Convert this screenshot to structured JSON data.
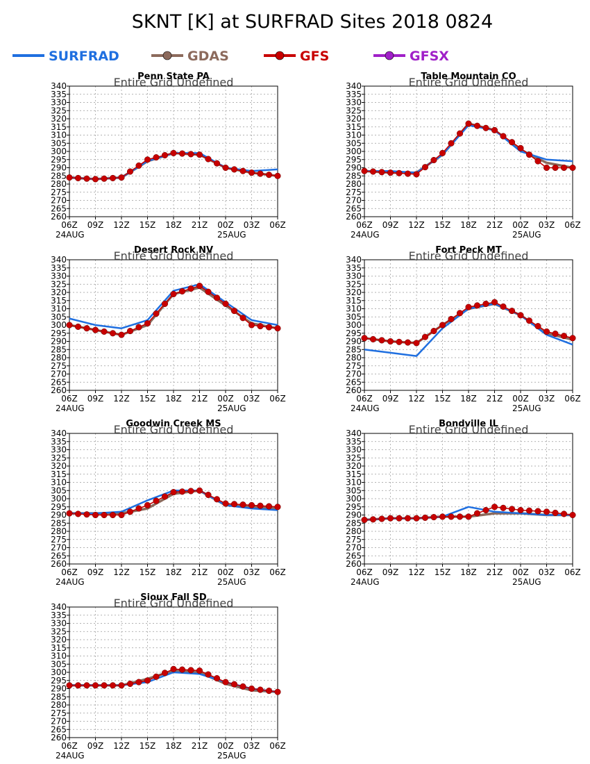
{
  "title": "SKNT [K] at SURFRAD Sites    2018 0824",
  "legend": [
    {
      "label": "SURFRAD",
      "color": "#1f6fe0",
      "marker": false
    },
    {
      "label": "GDAS",
      "color": "#8c6a5c",
      "marker": true
    },
    {
      "label": "GFS",
      "color": "#c80000",
      "marker": true
    },
    {
      "label": "GFSX",
      "color": "#a020c8",
      "marker": true
    }
  ],
  "chart_data": [
    {
      "type": "line",
      "title": "Penn State PA",
      "subtitle": "Entire Grid Undefined",
      "x": [
        "06Z",
        "09Z",
        "12Z",
        "15Z",
        "18Z",
        "21Z",
        "00Z",
        "03Z",
        "06Z"
      ],
      "date_labels": [
        "24AUG",
        "25AUG"
      ],
      "ylim": [
        260,
        340
      ],
      "yticks": [
        260,
        265,
        270,
        275,
        280,
        285,
        290,
        295,
        300,
        305,
        310,
        315,
        320,
        325,
        330,
        335,
        340
      ],
      "grid": true,
      "series": [
        {
          "name": "SURFRAD",
          "values": [
            284,
            283,
            284,
            294,
            299,
            299,
            290,
            288,
            289
          ]
        },
        {
          "name": "GDAS",
          "values": [
            284,
            283,
            284,
            294,
            299,
            298,
            290,
            287,
            285
          ]
        },
        {
          "name": "GFS",
          "values": [
            284,
            283,
            284,
            295,
            299,
            298,
            290,
            287,
            285
          ]
        }
      ]
    },
    {
      "type": "line",
      "title": "Table Mountain CO",
      "subtitle": "Entire Grid Undefined",
      "x": [
        "06Z",
        "09Z",
        "12Z",
        "15Z",
        "18Z",
        "21Z",
        "00Z",
        "03Z",
        "06Z"
      ],
      "date_labels": [
        "24AUG",
        "25AUG"
      ],
      "ylim": [
        260,
        340
      ],
      "yticks": [
        260,
        265,
        270,
        275,
        280,
        285,
        290,
        295,
        300,
        305,
        310,
        315,
        320,
        325,
        330,
        335,
        340
      ],
      "grid": true,
      "series": [
        {
          "name": "SURFRAD",
          "values": [
            288,
            288,
            287,
            298,
            316,
            313,
            300,
            295,
            294
          ]
        },
        {
          "name": "GDAS",
          "values": [
            288,
            287,
            287,
            298,
            317,
            313,
            301,
            293,
            290
          ]
        },
        {
          "name": "GFS",
          "values": [
            288,
            287,
            286,
            299,
            317,
            313,
            302,
            290,
            290
          ]
        }
      ]
    },
    {
      "type": "line",
      "title": "Desert Rock NV",
      "subtitle": "Entire Grid Undefined",
      "x": [
        "06Z",
        "09Z",
        "12Z",
        "15Z",
        "18Z",
        "21Z",
        "00Z",
        "03Z",
        "06Z"
      ],
      "date_labels": [
        "24AUG",
        "25AUG"
      ],
      "ylim": [
        260,
        340
      ],
      "yticks": [
        260,
        265,
        270,
        275,
        280,
        285,
        290,
        295,
        300,
        305,
        310,
        315,
        320,
        325,
        330,
        335,
        340
      ],
      "grid": true,
      "series": [
        {
          "name": "SURFRAD",
          "values": [
            304,
            300,
            298,
            303,
            321,
            325,
            314,
            303,
            300
          ]
        },
        {
          "name": "GDAS",
          "values": [
            300,
            297,
            294,
            300,
            319,
            323,
            312,
            301,
            298
          ]
        },
        {
          "name": "GFS",
          "values": [
            300,
            297,
            294,
            301,
            319,
            324,
            313,
            300,
            298
          ]
        }
      ]
    },
    {
      "type": "line",
      "title": "Fort Peck MT",
      "subtitle": "Entire Grid Undefined",
      "x": [
        "06Z",
        "09Z",
        "12Z",
        "15Z",
        "18Z",
        "21Z",
        "00Z",
        "03Z",
        "06Z"
      ],
      "date_labels": [
        "24AUG",
        "25AUG"
      ],
      "ylim": [
        260,
        340
      ],
      "yticks": [
        260,
        265,
        270,
        275,
        280,
        285,
        290,
        295,
        300,
        305,
        310,
        315,
        320,
        325,
        330,
        335,
        340
      ],
      "grid": true,
      "series": [
        {
          "name": "SURFRAD",
          "values": [
            285,
            283,
            281,
            298,
            310,
            313,
            306,
            294,
            288
          ]
        },
        {
          "name": "GDAS",
          "values": [
            292,
            290,
            289,
            300,
            310,
            313,
            306,
            295,
            291
          ]
        },
        {
          "name": "GFS",
          "values": [
            292,
            290,
            289,
            300,
            311,
            314,
            306,
            296,
            292
          ]
        }
      ]
    },
    {
      "type": "line",
      "title": "Goodwin Creek MS",
      "subtitle": "Entire Grid Undefined",
      "x": [
        "06Z",
        "09Z",
        "12Z",
        "15Z",
        "18Z",
        "21Z",
        "00Z",
        "03Z",
        "06Z"
      ],
      "date_labels": [
        "24AUG",
        "25AUG"
      ],
      "ylim": [
        260,
        340
      ],
      "yticks": [
        260,
        265,
        270,
        275,
        280,
        285,
        290,
        295,
        300,
        305,
        310,
        315,
        320,
        325,
        330,
        335,
        340
      ],
      "grid": true,
      "series": [
        {
          "name": "SURFRAD",
          "values": [
            291,
            291,
            292,
            299,
            305,
            305,
            296,
            294,
            293
          ]
        },
        {
          "name": "GDAS",
          "values": [
            291,
            291,
            291,
            294,
            303,
            305,
            296,
            295,
            294
          ]
        },
        {
          "name": "GFS",
          "values": [
            291,
            290,
            290,
            296,
            304,
            305,
            297,
            296,
            295
          ]
        }
      ]
    },
    {
      "type": "line",
      "title": "Bondville IL",
      "subtitle": "Entire Grid Undefined",
      "x": [
        "06Z",
        "09Z",
        "12Z",
        "15Z",
        "18Z",
        "21Z",
        "00Z",
        "03Z",
        "06Z"
      ],
      "date_labels": [
        "24AUG",
        "25AUG"
      ],
      "ylim": [
        260,
        340
      ],
      "yticks": [
        260,
        265,
        270,
        275,
        280,
        285,
        290,
        295,
        300,
        305,
        310,
        315,
        320,
        325,
        330,
        335,
        340
      ],
      "grid": true,
      "series": [
        {
          "name": "SURFRAD",
          "values": [
            287,
            288,
            288,
            289,
            295,
            292,
            291,
            290,
            290
          ]
        },
        {
          "name": "GDAS",
          "values": [
            287,
            288,
            288,
            289,
            289,
            291,
            291,
            290,
            290
          ]
        },
        {
          "name": "GFS",
          "values": [
            287,
            288,
            288,
            289,
            289,
            295,
            293,
            292,
            290
          ]
        }
      ]
    },
    {
      "type": "line",
      "title": "Sioux Fall SD",
      "subtitle": "Entire Grid Undefined",
      "x": [
        "06Z",
        "09Z",
        "12Z",
        "15Z",
        "18Z",
        "21Z",
        "00Z",
        "03Z",
        "06Z"
      ],
      "date_labels": [
        "24AUG",
        "25AUG"
      ],
      "ylim": [
        260,
        340
      ],
      "yticks": [
        260,
        265,
        270,
        275,
        280,
        285,
        290,
        295,
        300,
        305,
        310,
        315,
        320,
        325,
        330,
        335,
        340
      ],
      "grid": true,
      "series": [
        {
          "name": "SURFRAD",
          "values": [
            292,
            292,
            292,
            294,
            300,
            299,
            294,
            290,
            288
          ]
        },
        {
          "name": "GDAS",
          "values": [
            292,
            292,
            292,
            296,
            301,
            300,
            293,
            289,
            288
          ]
        },
        {
          "name": "GFS",
          "values": [
            292,
            292,
            292,
            295,
            302,
            301,
            294,
            290,
            288
          ]
        }
      ]
    }
  ]
}
